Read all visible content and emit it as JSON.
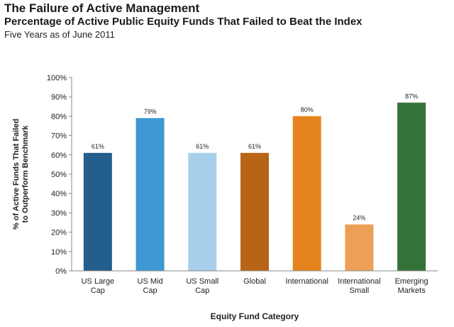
{
  "header": {
    "title": "The Failure of Active Management",
    "subtitle": "Percentage of Active Public Equity Funds That Failed to Beat the Index",
    "subsubtitle": "Five Years as of June 2011"
  },
  "chart_data": {
    "type": "bar",
    "categories": [
      [
        "US Large",
        "Cap"
      ],
      [
        "US Mid",
        "Cap"
      ],
      [
        "US Small",
        "Cap"
      ],
      [
        "Global"
      ],
      [
        "International"
      ],
      [
        "International",
        "Small"
      ],
      [
        "Emerging",
        "Markets"
      ]
    ],
    "values": [
      61,
      79,
      61,
      61,
      80,
      24,
      87
    ],
    "data_labels": [
      "61%",
      "79%",
      "61%",
      "61%",
      "80%",
      "24%",
      "87%"
    ],
    "bar_colors": [
      "#245e8c",
      "#3d98d3",
      "#a8d0ec",
      "#b86416",
      "#e5841c",
      "#eca057",
      "#357238"
    ],
    "xlabel": "Equity Fund Category",
    "ylabel": [
      "% of Active Funds That Failed",
      "to Outperform Benchmark"
    ],
    "ylim": [
      0,
      100
    ],
    "yticks": [
      0,
      10,
      20,
      30,
      40,
      50,
      60,
      70,
      80,
      90,
      100
    ],
    "ytick_labels": [
      "0%",
      "10%",
      "20%",
      "30%",
      "40%",
      "50%",
      "60%",
      "70%",
      "80%",
      "90%",
      "100%"
    ],
    "grid": false,
    "legend": "none"
  }
}
